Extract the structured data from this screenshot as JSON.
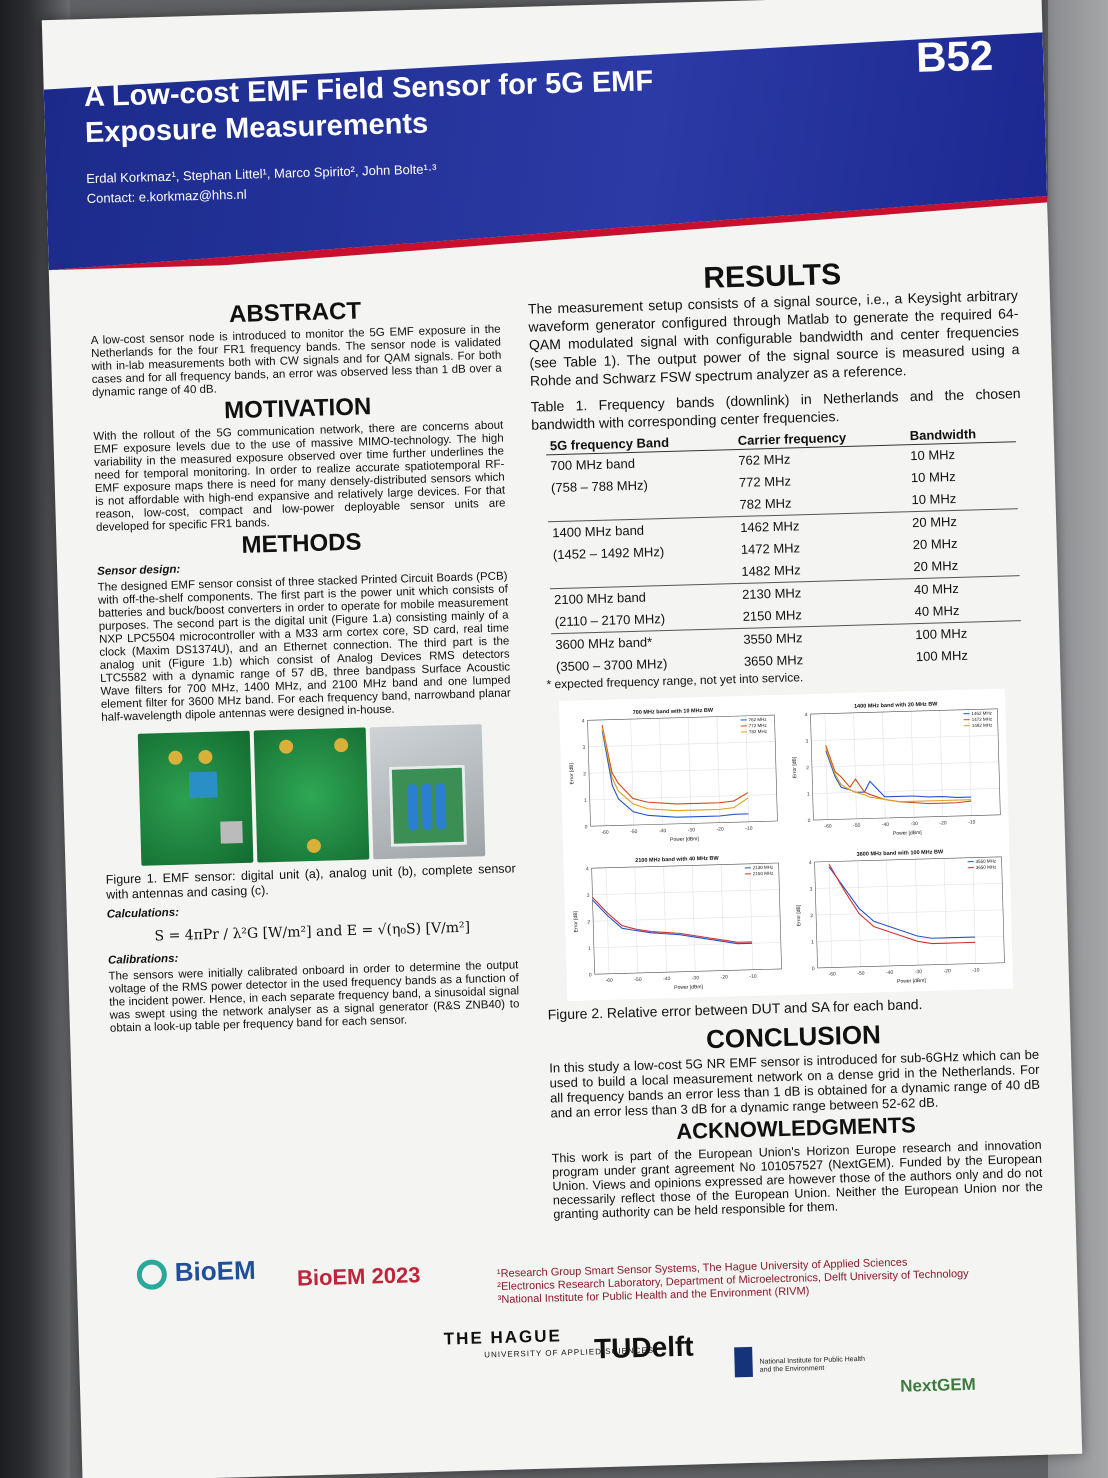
{
  "poster": {
    "code": "B52",
    "title": "A Low-cost EMF Field Sensor for 5G EMF Exposure Measurements",
    "authors": "Erdal Korkmaz¹, Stephan Littel¹, Marco Spirito², John Bolte¹·³",
    "contact": "Contact: e.korkmaz@hhs.nl"
  },
  "abstract": {
    "heading": "ABSTRACT",
    "text": "A low-cost sensor node is introduced to monitor the 5G EMF exposure in the Netherlands for the four FR1 frequency bands. The sensor node is validated with in-lab measurements both with CW signals and for QAM signals. For both cases and for all frequency bands, an error was observed less than 1 dB over a dynamic range of 40 dB."
  },
  "motivation": {
    "heading": "MOTIVATION",
    "text": "With the rollout of the 5G communication network, there are concerns about EMF exposure levels due to the use of massive MIMO-technology. The high variability in the measured exposure observed over time further underlines the need for temporal monitoring. In order to realize accurate spatiotemporal RF-EMF exposure maps there is need for many densely-distributed sensors which is not affordable with high-end expansive and relatively large devices. For that reason, low-cost, compact and low-power deployable sensor units are developed for specific FR1 bands."
  },
  "methods": {
    "heading": "METHODS",
    "sensor_design_label": "Sensor design:",
    "sensor_design_text": "The designed EMF sensor consist of three stacked Printed Circuit Boards (PCB) with off-the-shelf components. The first part is the power unit which consists of batteries and buck/boost converters in order to operate for mobile measurement purposes. The second part is the digital unit (Figure 1.a) consisting mainly of a NXP LPC5504 microcontroller with a M33 arm cortex core, SD card, real time clock (Maxim DS1374U), and an Ethernet connection. The third part is the analog unit (Figure 1.b) which consist of Analog Devices RMS detectors LTC5582 with a dynamic range of 57 dB, three bandpass Surface Acoustic Wave filters for 700 MHz, 1400 MHz, and 2100 MHz band and one lumped element filter for 3600 MHz band. For each frequency band, narrowband planar half-wavelength dipole antennas were designed in-house.",
    "figure1_caption": "Figure 1. EMF sensor: digital unit (a), analog unit (b), complete sensor with antennas and casing (c).",
    "calculations_label": "Calculations:",
    "formula": "S = 4πPr / λ²G  [W/m²]   and   E = √(η₀S)  [V/m²]",
    "calibrations_label": "Calibrations:",
    "calibrations_text": "The sensors were initially calibrated onboard in order to determine the output voltage of the RMS power detector in the used frequency bands as a function of the incident power. Hence, in each separate frequency band, a sinusoidal signal was swept using the network analyser as a signal generator (R&S ZNB40) to obtain a look-up table per frequency band for each sensor."
  },
  "results": {
    "heading": "RESULTS",
    "text": "The measurement setup consists of a signal source, i.e., a Keysight arbitrary waveform generator configured through Matlab to generate the required 64-QAM modulated signal with configurable bandwidth and center frequencies (see Table 1). The output power of the signal source is measured using a Rohde and Schwarz FSW spectrum analyzer as a reference.",
    "table_caption": "Table 1. Frequency bands (downlink) in Netherlands and the chosen bandwidth with corresponding center frequencies.",
    "table_headers": [
      "5G frequency Band",
      "Carrier frequency",
      "Bandwidth"
    ],
    "table_rows": [
      [
        "700 MHz band",
        "762 MHz",
        "10 MHz",
        "sep"
      ],
      [
        "(758 – 788 MHz)",
        "772 MHz",
        "10 MHz",
        ""
      ],
      [
        "",
        "782 MHz",
        "10 MHz",
        ""
      ],
      [
        "1400 MHz band",
        "1462 MHz",
        "20 MHz",
        "sep"
      ],
      [
        "(1452 – 1492 MHz)",
        "1472 MHz",
        "20 MHz",
        ""
      ],
      [
        "",
        "1482 MHz",
        "20 MHz",
        ""
      ],
      [
        "2100 MHz band",
        "2130 MHz",
        "40 MHz",
        "sep"
      ],
      [
        "(2110 – 2170 MHz)",
        "2150 MHz",
        "40 MHz",
        ""
      ],
      [
        "3600 MHz band*",
        "3550 MHz",
        "100 MHz",
        "sep"
      ],
      [
        "(3500 – 3700 MHz)",
        "3650 MHz",
        "100 MHz",
        ""
      ]
    ],
    "table_note": "* expected frequency range, not yet into service.",
    "figure2_caption": "Figure 2. Relative error between DUT and SA for each band."
  },
  "chart_data": [
    {
      "type": "line",
      "title": "700 MHz band with 10 MHz BW",
      "xlabel": "Power [dBm]",
      "ylabel": "Error [dB]",
      "xlim": [
        -65,
        0
      ],
      "ylim": [
        0,
        4
      ],
      "x": [
        -60,
        -57,
        -55,
        -50,
        -45,
        -40,
        -35,
        -30,
        -25,
        -20,
        -15,
        -10
      ],
      "series": [
        {
          "name": "762 MHz",
          "color": "#2255cc",
          "values": [
            3.6,
            1.5,
            1.0,
            0.5,
            0.35,
            0.3,
            0.25,
            0.25,
            0.25,
            0.25,
            0.3,
            0.3
          ]
        },
        {
          "name": "772 MHz",
          "color": "#d24a1e",
          "values": [
            3.8,
            2.0,
            1.6,
            1.0,
            0.85,
            0.8,
            0.75,
            0.75,
            0.75,
            0.75,
            0.8,
            1.1
          ]
        },
        {
          "name": "782 MHz",
          "color": "#e0a020",
          "values": [
            3.7,
            1.8,
            1.3,
            0.8,
            0.6,
            0.55,
            0.5,
            0.5,
            0.5,
            0.5,
            0.55,
            0.9
          ]
        }
      ]
    },
    {
      "type": "line",
      "title": "1400 MHz band with 20 MHz BW",
      "xlabel": "Power [dBm]",
      "ylabel": "Error [dB]",
      "xlim": [
        -65,
        0
      ],
      "ylim": [
        0,
        4
      ],
      "x": [
        -60,
        -57,
        -55,
        -52,
        -50,
        -47,
        -45,
        -40,
        -35,
        -30,
        -25,
        -20,
        -15,
        -10
      ],
      "series": [
        {
          "name": "1462 MHz",
          "color": "#2255cc",
          "values": [
            2.6,
            1.6,
            1.2,
            1.1,
            1.0,
            1.0,
            1.4,
            0.8,
            0.8,
            0.8,
            0.75,
            0.75,
            0.7,
            0.7
          ]
        },
        {
          "name": "1472 MHz",
          "color": "#d24a1e",
          "values": [
            2.8,
            1.8,
            1.6,
            1.2,
            1.5,
            1.0,
            0.9,
            0.7,
            0.6,
            0.55,
            0.5,
            0.5,
            0.5,
            0.55
          ]
        },
        {
          "name": "1482 MHz",
          "color": "#e0a020",
          "values": [
            2.7,
            1.7,
            1.3,
            1.1,
            1.0,
            0.9,
            0.8,
            0.7,
            0.6,
            0.6,
            0.6,
            0.6,
            0.6,
            0.6
          ]
        }
      ]
    },
    {
      "type": "line",
      "title": "2100 MHz band with 40 MHz BW",
      "xlabel": "Power [dBm]",
      "ylabel": "Error [dB]",
      "xlim": [
        -65,
        0
      ],
      "ylim": [
        0,
        4
      ],
      "x": [
        -65,
        -60,
        -55,
        -50,
        -45,
        -40,
        -35,
        -30,
        -25,
        -20,
        -15,
        -10
      ],
      "series": [
        {
          "name": "2130 MHz",
          "color": "#2255cc",
          "values": [
            2.8,
            2.2,
            1.7,
            1.6,
            1.5,
            1.45,
            1.4,
            1.3,
            1.2,
            1.1,
            1.0,
            1.0
          ]
        },
        {
          "name": "2150 MHz",
          "color": "#d23030",
          "values": [
            2.9,
            2.3,
            1.8,
            1.65,
            1.55,
            1.5,
            1.45,
            1.35,
            1.25,
            1.15,
            1.05,
            1.05
          ]
        }
      ]
    },
    {
      "type": "line",
      "title": "3600 MHz band with 100 MHz BW",
      "xlabel": "Power [dBm]",
      "ylabel": "Error [dB]",
      "xlim": [
        -65,
        0
      ],
      "ylim": [
        0,
        4
      ],
      "x": [
        -60,
        -55,
        -50,
        -45,
        -40,
        -35,
        -30,
        -25,
        -20,
        -15,
        -10
      ],
      "series": [
        {
          "name": "3550 MHz",
          "color": "#2255cc",
          "values": [
            3.8,
            3.0,
            2.2,
            1.7,
            1.5,
            1.3,
            1.1,
            1.0,
            1.0,
            1.0,
            1.0
          ]
        },
        {
          "name": "3650 MHz",
          "color": "#d23030",
          "values": [
            3.9,
            2.9,
            2.0,
            1.5,
            1.3,
            1.1,
            0.9,
            0.8,
            0.8,
            0.8,
            0.8
          ]
        }
      ]
    }
  ],
  "conclusion": {
    "heading": "CONCLUSION",
    "text": "In this study a low-cost 5G NR EMF sensor is introduced for sub-6GHz which can be used to build a local measurement network on a dense grid in the Netherlands. For all frequency bands an error less than 1 dB is obtained for a dynamic range of 40 dB and an error less than 3 dB for a dynamic range between 52-62 dB."
  },
  "acknowledgments": {
    "heading": "ACKNOWLEDGMENTS",
    "text": "This work is part of the European Union's Horizon Europe research and innovation program under grant agreement No 101057527 (NextGEM). Funded by the European Union. Views and opinions expressed are however those of the authors only and do not necessarily reflect those of the European Union. Neither the European Union nor the granting authority can be held responsible for them."
  },
  "footer": {
    "bioem": "BioEM",
    "bioem2023": "BioEM 2023",
    "affiliation1": "¹Research Group Smart Sensor Systems, The Hague University of Applied Sciences",
    "affiliation2": "²Electronics Research Laboratory, Department of Microelectronics, Delft University of Technology",
    "affiliation3": "³National Institute for Public Health and the Environment (RIVM)",
    "hague": "THE HAGUE",
    "hague_sub": "UNIVERSITY OF APPLIED SCIENCES",
    "tudelft": "TUDelft",
    "rivm": "National Institute for Public Health and the Environment",
    "nextgem": "NextGEM"
  }
}
